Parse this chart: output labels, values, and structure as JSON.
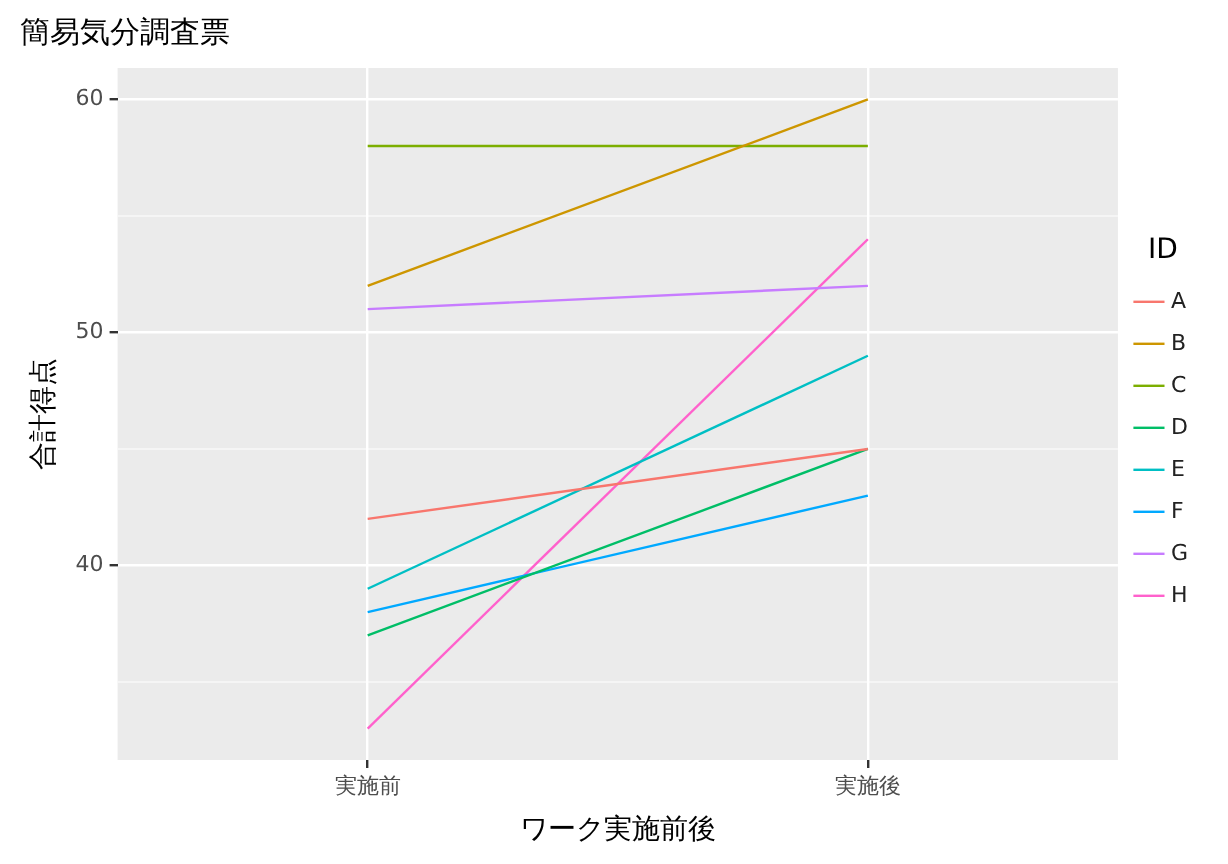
{
  "chart_data": {
    "type": "line",
    "title": "簡易気分調査票",
    "xlabel": "ワーク実施前後",
    "ylabel": "合計得点",
    "legend_title": "ID",
    "categories": [
      "実施前",
      "実施後"
    ],
    "series": [
      {
        "name": "A",
        "color": "#f8766d",
        "values": [
          42,
          45
        ]
      },
      {
        "name": "B",
        "color": "#cd9600",
        "values": [
          52,
          60
        ]
      },
      {
        "name": "C",
        "color": "#7cae00",
        "values": [
          58,
          58
        ]
      },
      {
        "name": "D",
        "color": "#00be67",
        "values": [
          37,
          45
        ]
      },
      {
        "name": "E",
        "color": "#00bfc4",
        "values": [
          39,
          49
        ]
      },
      {
        "name": "F",
        "color": "#00a9ff",
        "values": [
          38,
          43
        ]
      },
      {
        "name": "G",
        "color": "#c77cff",
        "values": [
          51,
          52
        ]
      },
      {
        "name": "H",
        "color": "#ff61cc",
        "values": [
          33,
          54
        ]
      }
    ],
    "ylim": [
      31.65,
      61.35
    ],
    "yticks": [
      {
        "value": 35,
        "label": null
      },
      40,
      {
        "value": 45,
        "label": null
      },
      50,
      {
        "value": 55,
        "label": null
      },
      60
    ],
    "grid": true,
    "legend": "right",
    "marker": "none",
    "line_style": "solid"
  }
}
